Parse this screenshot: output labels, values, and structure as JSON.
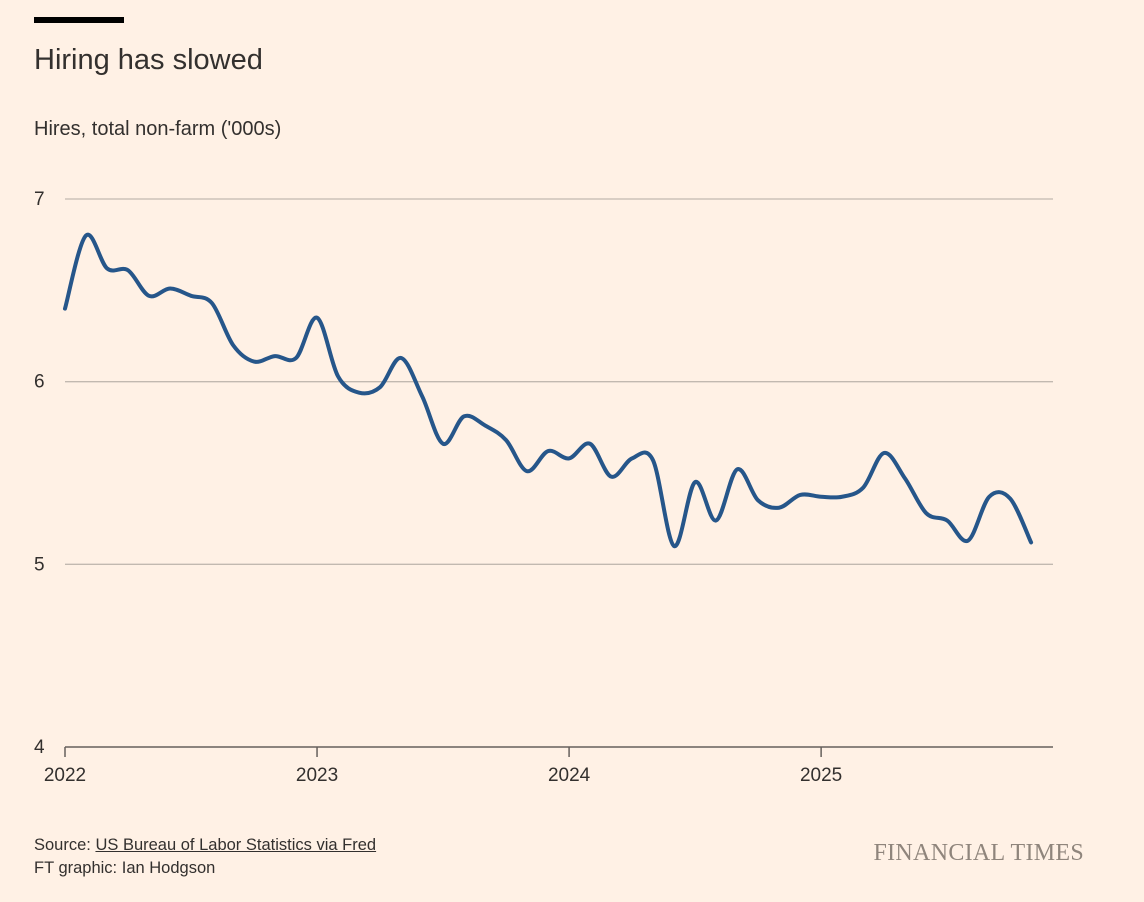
{
  "title": "Hiring has slowed",
  "subtitle": "Hires, total non-farm ('000s)",
  "source_label": "Source: ",
  "source_link": "US Bureau of Labor Statistics via Fred",
  "credit": "FT graphic: Ian Hodgson",
  "brand": "FINANCIAL TIMES",
  "colors": {
    "background": "#fff1e5",
    "line": "#26568a",
    "grid": "#c2b9b0",
    "axis": "#66605c",
    "text": "#33302e"
  },
  "chart_data": {
    "type": "line",
    "title": "Hiring has slowed",
    "ylabel": "Hires, total non-farm ('000s)",
    "xlabel": "",
    "ylim": [
      4,
      7
    ],
    "yticks": [
      4,
      5,
      6,
      7
    ],
    "xlim": [
      2022,
      2025.92
    ],
    "xticks": [
      {
        "value": 2022,
        "label": "2022"
      },
      {
        "value": 2023,
        "label": "2023"
      },
      {
        "value": 2024,
        "label": "2024"
      },
      {
        "value": 2025,
        "label": "2025"
      }
    ],
    "grid": true,
    "series": [
      {
        "name": "Hires",
        "x": [
          2022.0,
          2022.083,
          2022.167,
          2022.25,
          2022.333,
          2022.417,
          2022.5,
          2022.583,
          2022.667,
          2022.75,
          2022.833,
          2022.917,
          2023.0,
          2023.083,
          2023.167,
          2023.25,
          2023.333,
          2023.417,
          2023.5,
          2023.583,
          2023.667,
          2023.75,
          2023.833,
          2023.917,
          2024.0,
          2024.083,
          2024.167,
          2024.25,
          2024.333,
          2024.417,
          2024.5,
          2024.583,
          2024.667,
          2024.75,
          2024.833,
          2024.917,
          2025.0,
          2025.083,
          2025.167,
          2025.25,
          2025.333,
          2025.417,
          2025.5,
          2025.583,
          2025.667,
          2025.75,
          2025.833
        ],
        "values": [
          6.4,
          6.8,
          6.62,
          6.61,
          6.47,
          6.51,
          6.47,
          6.43,
          6.2,
          6.11,
          6.14,
          6.13,
          6.35,
          6.03,
          5.94,
          5.97,
          6.13,
          5.92,
          5.66,
          5.81,
          5.76,
          5.68,
          5.51,
          5.62,
          5.58,
          5.66,
          5.48,
          5.58,
          5.57,
          5.1,
          5.45,
          5.24,
          5.52,
          5.35,
          5.31,
          5.38,
          5.37,
          5.37,
          5.42,
          5.61,
          5.47,
          5.28,
          5.24,
          5.13,
          5.37,
          5.36,
          5.12
        ]
      }
    ]
  }
}
